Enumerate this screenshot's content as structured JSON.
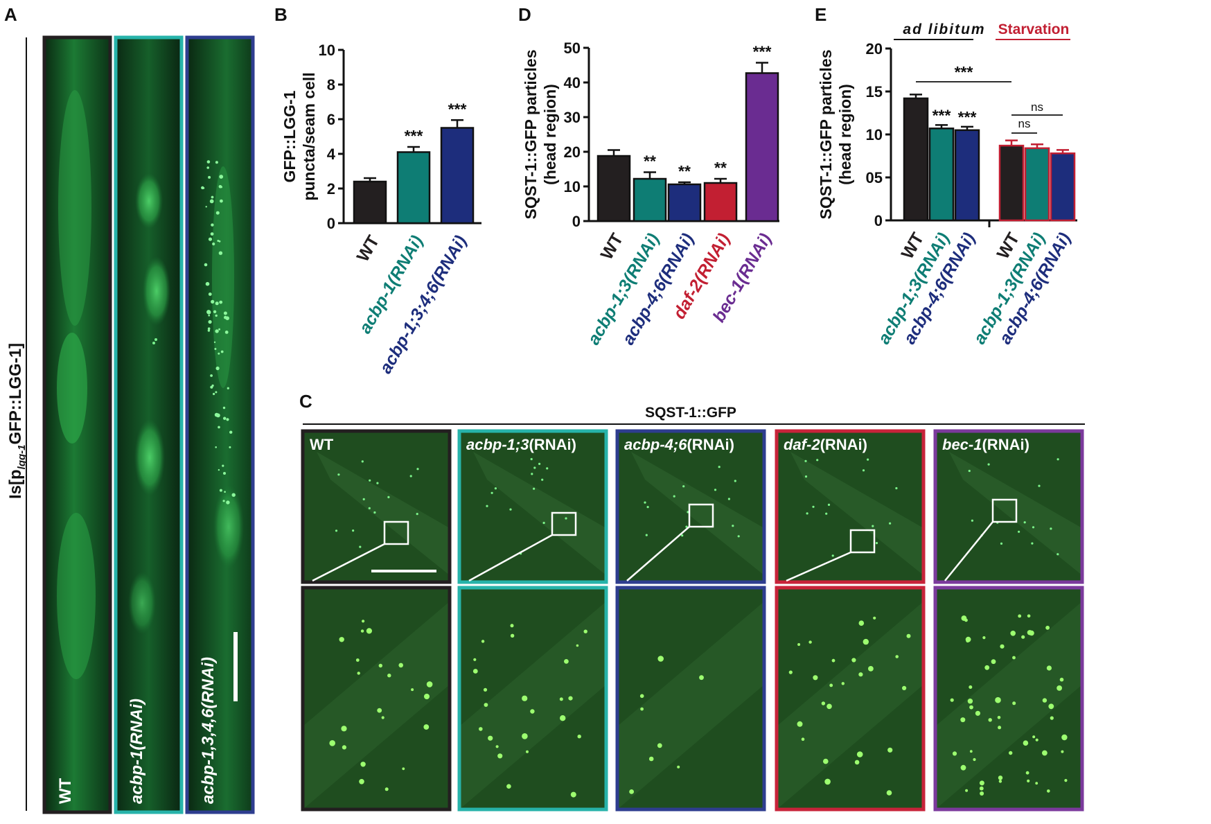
{
  "panels": {
    "A": {
      "letter": "A",
      "side_label_main": "Is[p",
      "side_label_sub": "lgg-1",
      "side_label_rest": "GFP::LGG-1]",
      "images": [
        {
          "label": "WT",
          "italic": false
        },
        {
          "label": "acbp-1(RNAi)",
          "italic": true
        },
        {
          "label": "acbp-1,3,4,6(RNAi)",
          "italic": true
        }
      ]
    },
    "B": {
      "letter": "B"
    },
    "C": {
      "letter": "C",
      "title": "SQST-1::GFP",
      "images": [
        {
          "gene": "",
          "suffix": "WT"
        },
        {
          "gene": "acbp-1;3",
          "suffix": "(RNAi)"
        },
        {
          "gene": "acbp-4;6",
          "suffix": "(RNAi)"
        },
        {
          "gene": "daf-2",
          "suffix": "(RNAi)"
        },
        {
          "gene": "bec-1",
          "suffix": "(RNAi)"
        }
      ]
    },
    "D": {
      "letter": "D"
    },
    "E": {
      "letter": "E",
      "group1": "ad libitum",
      "group2": "Starvation"
    }
  },
  "colors": {
    "black": "#231f20",
    "teal": "#0e7d74",
    "navy": "#1d2d7c",
    "red": "#c21f32",
    "purple": "#6a2c91",
    "teal_frame": "#27b3aa",
    "navy_frame": "#2e3d8f",
    "red_frame": "#c8233a",
    "purple_frame": "#7b3a9c",
    "micro_bg": "#1f4d1f",
    "gfp": "#3cc850"
  },
  "chart_data": [
    {
      "panel": "B",
      "type": "bar",
      "ylabel": "GFP::LGG-1\npuncta/seam cell",
      "ylim": [
        0,
        10
      ],
      "yticks": [
        "0",
        "2",
        "4",
        "6",
        "8",
        "10"
      ],
      "categories": [
        "WT",
        "acbp-1(RNAi)",
        "acbp-1;3;4;6(RNAi)"
      ],
      "values": [
        2.4,
        4.1,
        5.5
      ],
      "errors": [
        0.2,
        0.3,
        0.45
      ],
      "significance": [
        "",
        "***",
        "***"
      ],
      "bar_colors": [
        "#231f20",
        "#0e7d74",
        "#1d2d7c"
      ]
    },
    {
      "panel": "D",
      "type": "bar",
      "ylabel": "SQST-1::GFP particles\n(head region)",
      "ylim": [
        0,
        50
      ],
      "yticks": [
        "0",
        "10",
        "20",
        "30",
        "40",
        "50"
      ],
      "categories": [
        "WT",
        "acbp-1;3(RNAi)",
        "acbp-4;6(RNAi)",
        "daf-2(RNAi)",
        "bec-1(RNAi)"
      ],
      "values": [
        18.8,
        12.2,
        10.6,
        11.0,
        42.7
      ],
      "errors": [
        1.7,
        1.9,
        0.6,
        1.2,
        3.0
      ],
      "significance": [
        "",
        "**",
        "**",
        "**",
        "***"
      ],
      "bar_colors": [
        "#231f20",
        "#0e7d74",
        "#1d2d7c",
        "#c21f32",
        "#6a2c91"
      ]
    },
    {
      "panel": "E",
      "type": "bar",
      "ylabel": "SQST-1::GFP particles\n(head region)",
      "ylim": [
        0,
        20
      ],
      "yticks": [
        "0",
        "05",
        "10",
        "15",
        "20"
      ],
      "categories": [
        "WT",
        "acbp-1;3(RNAi)",
        "acbp-4;6(RNAi)",
        "WT",
        "acbp-1;3(RNAi)",
        "acbp-4;6(RNAi)"
      ],
      "groups": [
        "ad libitum",
        "Starvation"
      ],
      "values": [
        14.2,
        10.7,
        10.5,
        8.7,
        8.4,
        7.8
      ],
      "errors": [
        0.45,
        0.4,
        0.4,
        0.6,
        0.45,
        0.4
      ],
      "significance": [
        "",
        "***",
        "***",
        "",
        "",
        ""
      ],
      "comparisons": [
        {
          "label": "***",
          "from": "WT (ad libitum)",
          "to": "WT (Starvation)"
        },
        {
          "label": "ns",
          "from": "WT (Starvation)",
          "to": "acbp-1;3(RNAi) (Starvation)"
        },
        {
          "label": "ns",
          "from": "WT (Starvation)",
          "to": "acbp-4;6(RNAi) (Starvation)"
        }
      ],
      "bar_colors": [
        "#231f20",
        "#0e7d74",
        "#1d2d7c",
        "#231f20",
        "#0e7d74",
        "#1d2d7c"
      ],
      "bar_outlines": [
        "#111111",
        "#111111",
        "#111111",
        "#c21f32",
        "#c21f32",
        "#c21f32"
      ]
    }
  ]
}
